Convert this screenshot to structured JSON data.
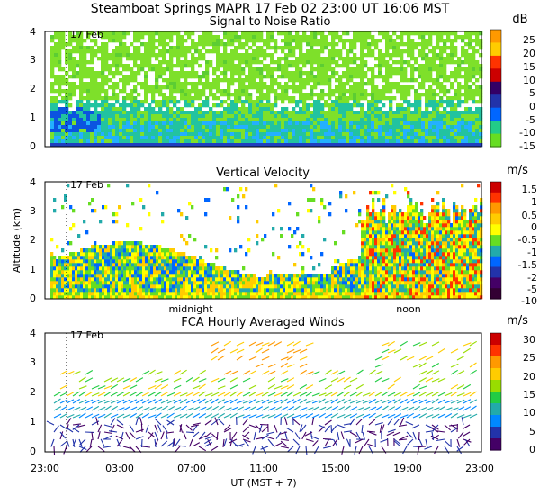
{
  "header": {
    "title": "Steamboat Springs  MAPR 17 Feb 02  23:00 UT  16:06  MST"
  },
  "chart_data": [
    {
      "type": "heatmap",
      "title": "Signal to Noise Ratio",
      "date_label": "17 Feb",
      "ylabel": "",
      "ylim": [
        0,
        4
      ],
      "yticks": [
        "0",
        "1",
        "2",
        "3",
        "4"
      ],
      "colorbar": {
        "unit": "dB",
        "labels": [
          "25",
          "20",
          "15",
          "10",
          "5",
          "0",
          "-5",
          "-10",
          "-15"
        ],
        "colors": [
          "#ff9900",
          "#ffcc00",
          "#ff3300",
          "#cc0000",
          "#330066",
          "#2233aa",
          "#0066ff",
          "#22cc88",
          "#66dd22"
        ]
      }
    },
    {
      "type": "heatmap",
      "title": "Vertical Velocity",
      "date_label": "17 Feb",
      "ylabel": "Altitude (km)",
      "ylim": [
        0,
        4
      ],
      "yticks": [
        "0",
        "1",
        "2",
        "3",
        "4"
      ],
      "xmarkers": [
        "midnight",
        "noon"
      ],
      "colorbar": {
        "unit": "m/s",
        "labels": [
          "1.5",
          "1",
          "0.5",
          "0",
          "-0.5",
          "-1",
          "-1.5",
          "-2",
          "-5",
          "-10"
        ],
        "colors": [
          "#cc0000",
          "#ff3300",
          "#ff9900",
          "#ffcc00",
          "#ffff00",
          "#66dd22",
          "#22aaaa",
          "#0066ff",
          "#2233aa",
          "#440066",
          "#330033"
        ]
      }
    },
    {
      "type": "scatter",
      "title": "FCA Hourly Averaged Winds",
      "date_label": "17 Feb",
      "ylabel": "",
      "ylim": [
        0,
        4
      ],
      "yticks": [
        "0",
        "1",
        "2",
        "3",
        "4"
      ],
      "xlabel": "UT  (MST + 7)",
      "xticks": [
        "23:00",
        "03:00",
        "07:00",
        "11:00",
        "15:00",
        "19:00",
        "23:00"
      ],
      "colorbar": {
        "unit": "m/s",
        "labels": [
          "30",
          "25",
          "20",
          "15",
          "10",
          "5",
          "0"
        ],
        "colors": [
          "#cc0000",
          "#ff3300",
          "#ff9900",
          "#ffcc00",
          "#99dd00",
          "#22cc44",
          "#22aaaa",
          "#0088ff",
          "#2233aa",
          "#440066"
        ]
      }
    }
  ]
}
